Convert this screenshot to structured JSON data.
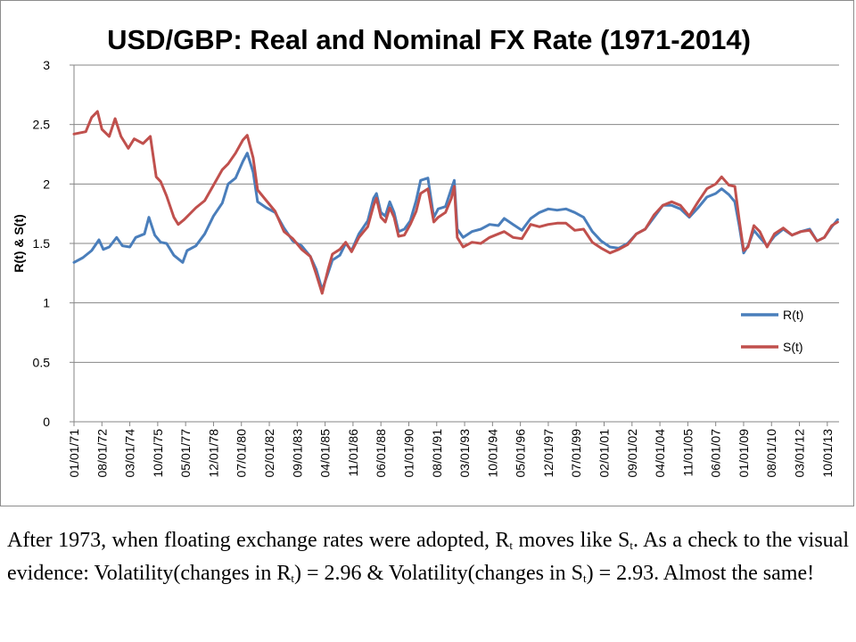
{
  "chart_data": {
    "type": "line",
    "title": "USD/GBP: Real and Nominal FX Rate (1971-2014)",
    "xlabel": "",
    "ylabel": "R(t) & S(t)",
    "ylim": [
      0,
      3
    ],
    "yticks": [
      "0",
      "0.5",
      "1",
      "1.5",
      "2",
      "2.5",
      "3"
    ],
    "x_start": "1971-01",
    "x_end": "2014-06",
    "xticks": [
      "01/01/71",
      "08/01/72",
      "03/01/74",
      "10/01/75",
      "05/01/77",
      "12/01/78",
      "07/01/80",
      "02/01/82",
      "09/01/83",
      "04/01/85",
      "11/01/86",
      "06/01/88",
      "01/01/90",
      "08/01/91",
      "03/01/93",
      "10/01/94",
      "05/01/96",
      "12/01/97",
      "07/01/99",
      "02/01/01",
      "09/01/02",
      "04/01/04",
      "11/01/05",
      "06/01/07",
      "01/01/09",
      "08/01/10",
      "03/01/12",
      "10/01/13"
    ],
    "grid": true,
    "legend_position": "right",
    "series": [
      {
        "name": "R(t)",
        "color": "#4a7ebb",
        "points": [
          [
            "1971-01",
            1.34
          ],
          [
            "1971-07",
            1.38
          ],
          [
            "1972-01",
            1.44
          ],
          [
            "1972-06",
            1.53
          ],
          [
            "1972-09",
            1.45
          ],
          [
            "1973-01",
            1.47
          ],
          [
            "1973-06",
            1.55
          ],
          [
            "1973-10",
            1.48
          ],
          [
            "1974-03",
            1.47
          ],
          [
            "1974-07",
            1.55
          ],
          [
            "1975-01",
            1.58
          ],
          [
            "1975-04",
            1.72
          ],
          [
            "1975-08",
            1.57
          ],
          [
            "1975-12",
            1.51
          ],
          [
            "1976-04",
            1.5
          ],
          [
            "1976-09",
            1.4
          ],
          [
            "1976-12",
            1.37
          ],
          [
            "1977-03",
            1.34
          ],
          [
            "1977-06",
            1.44
          ],
          [
            "1977-12",
            1.48
          ],
          [
            "1978-06",
            1.58
          ],
          [
            "1978-12",
            1.73
          ],
          [
            "1979-06",
            1.84
          ],
          [
            "1979-10",
            2.0
          ],
          [
            "1980-03",
            2.05
          ],
          [
            "1980-08",
            2.19
          ],
          [
            "1980-11",
            2.26
          ],
          [
            "1981-03",
            2.1
          ],
          [
            "1981-06",
            1.85
          ],
          [
            "1981-12",
            1.8
          ],
          [
            "1982-06",
            1.76
          ],
          [
            "1982-12",
            1.63
          ],
          [
            "1983-06",
            1.52
          ],
          [
            "1983-12",
            1.48
          ],
          [
            "1984-06",
            1.39
          ],
          [
            "1984-10",
            1.28
          ],
          [
            "1985-02",
            1.11
          ],
          [
            "1985-06",
            1.25
          ],
          [
            "1985-09",
            1.36
          ],
          [
            "1986-02",
            1.4
          ],
          [
            "1986-06",
            1.5
          ],
          [
            "1986-10",
            1.44
          ],
          [
            "1987-03",
            1.58
          ],
          [
            "1987-09",
            1.69
          ],
          [
            "1988-01",
            1.88
          ],
          [
            "1988-03",
            1.92
          ],
          [
            "1988-06",
            1.76
          ],
          [
            "1988-09",
            1.73
          ],
          [
            "1988-12",
            1.85
          ],
          [
            "1989-03",
            1.76
          ],
          [
            "1989-06",
            1.6
          ],
          [
            "1989-10",
            1.62
          ],
          [
            "1990-02",
            1.69
          ],
          [
            "1990-06",
            1.86
          ],
          [
            "1990-09",
            2.03
          ],
          [
            "1991-02",
            2.05
          ],
          [
            "1991-06",
            1.72
          ],
          [
            "1991-09",
            1.79
          ],
          [
            "1992-02",
            1.81
          ],
          [
            "1992-06",
            1.96
          ],
          [
            "1992-08",
            2.03
          ],
          [
            "1992-10",
            1.62
          ],
          [
            "1993-02",
            1.55
          ],
          [
            "1993-08",
            1.6
          ],
          [
            "1994-02",
            1.62
          ],
          [
            "1994-08",
            1.66
          ],
          [
            "1995-02",
            1.65
          ],
          [
            "1995-06",
            1.71
          ],
          [
            "1995-12",
            1.66
          ],
          [
            "1996-06",
            1.61
          ],
          [
            "1996-12",
            1.71
          ],
          [
            "1997-06",
            1.76
          ],
          [
            "1997-12",
            1.79
          ],
          [
            "1998-06",
            1.78
          ],
          [
            "1998-12",
            1.79
          ],
          [
            "1999-06",
            1.76
          ],
          [
            "1999-12",
            1.72
          ],
          [
            "2000-06",
            1.6
          ],
          [
            "2000-12",
            1.52
          ],
          [
            "2001-06",
            1.47
          ],
          [
            "2001-12",
            1.46
          ],
          [
            "2002-06",
            1.5
          ],
          [
            "2002-12",
            1.58
          ],
          [
            "2003-06",
            1.62
          ],
          [
            "2003-12",
            1.72
          ],
          [
            "2004-06",
            1.82
          ],
          [
            "2004-12",
            1.82
          ],
          [
            "2005-06",
            1.79
          ],
          [
            "2005-12",
            1.72
          ],
          [
            "2006-06",
            1.8
          ],
          [
            "2006-12",
            1.89
          ],
          [
            "2007-06",
            1.92
          ],
          [
            "2007-10",
            1.96
          ],
          [
            "2008-03",
            1.91
          ],
          [
            "2008-07",
            1.85
          ],
          [
            "2008-10",
            1.65
          ],
          [
            "2009-01",
            1.42
          ],
          [
            "2009-04",
            1.48
          ],
          [
            "2009-08",
            1.61
          ],
          [
            "2009-12",
            1.55
          ],
          [
            "2010-05",
            1.48
          ],
          [
            "2010-10",
            1.56
          ],
          [
            "2011-04",
            1.62
          ],
          [
            "2011-10",
            1.57
          ],
          [
            "2012-04",
            1.6
          ],
          [
            "2012-10",
            1.62
          ],
          [
            "2013-03",
            1.52
          ],
          [
            "2013-08",
            1.55
          ],
          [
            "2014-01",
            1.64
          ],
          [
            "2014-05",
            1.7
          ]
        ]
      },
      {
        "name": "S(t)",
        "color": "#c0504d",
        "points": [
          [
            "1971-01",
            2.42
          ],
          [
            "1971-09",
            2.44
          ],
          [
            "1972-01",
            2.56
          ],
          [
            "1972-05",
            2.61
          ],
          [
            "1972-08",
            2.46
          ],
          [
            "1973-01",
            2.4
          ],
          [
            "1973-05",
            2.55
          ],
          [
            "1973-09",
            2.4
          ],
          [
            "1974-02",
            2.3
          ],
          [
            "1974-06",
            2.38
          ],
          [
            "1974-12",
            2.34
          ],
          [
            "1975-05",
            2.4
          ],
          [
            "1975-09",
            2.06
          ],
          [
            "1975-12",
            2.02
          ],
          [
            "1976-04",
            1.9
          ],
          [
            "1976-09",
            1.72
          ],
          [
            "1976-12",
            1.66
          ],
          [
            "1977-04",
            1.7
          ],
          [
            "1977-12",
            1.8
          ],
          [
            "1978-06",
            1.86
          ],
          [
            "1978-12",
            1.99
          ],
          [
            "1979-06",
            2.12
          ],
          [
            "1979-10",
            2.17
          ],
          [
            "1980-03",
            2.26
          ],
          [
            "1980-08",
            2.37
          ],
          [
            "1980-11",
            2.41
          ],
          [
            "1981-03",
            2.22
          ],
          [
            "1981-06",
            1.95
          ],
          [
            "1981-12",
            1.86
          ],
          [
            "1982-06",
            1.77
          ],
          [
            "1982-12",
            1.6
          ],
          [
            "1983-06",
            1.54
          ],
          [
            "1983-12",
            1.45
          ],
          [
            "1984-06",
            1.39
          ],
          [
            "1984-10",
            1.24
          ],
          [
            "1985-02",
            1.08
          ],
          [
            "1985-06",
            1.28
          ],
          [
            "1985-09",
            1.41
          ],
          [
            "1986-02",
            1.45
          ],
          [
            "1986-06",
            1.51
          ],
          [
            "1986-10",
            1.43
          ],
          [
            "1987-03",
            1.55
          ],
          [
            "1987-09",
            1.64
          ],
          [
            "1988-01",
            1.82
          ],
          [
            "1988-03",
            1.88
          ],
          [
            "1988-06",
            1.72
          ],
          [
            "1988-09",
            1.68
          ],
          [
            "1988-12",
            1.8
          ],
          [
            "1989-03",
            1.72
          ],
          [
            "1989-06",
            1.56
          ],
          [
            "1989-10",
            1.57
          ],
          [
            "1990-02",
            1.66
          ],
          [
            "1990-06",
            1.77
          ],
          [
            "1990-09",
            1.92
          ],
          [
            "1991-02",
            1.96
          ],
          [
            "1991-06",
            1.68
          ],
          [
            "1991-09",
            1.72
          ],
          [
            "1992-02",
            1.76
          ],
          [
            "1992-06",
            1.88
          ],
          [
            "1992-08",
            1.98
          ],
          [
            "1992-10",
            1.55
          ],
          [
            "1993-02",
            1.47
          ],
          [
            "1993-08",
            1.51
          ],
          [
            "1994-02",
            1.5
          ],
          [
            "1994-08",
            1.55
          ],
          [
            "1995-02",
            1.58
          ],
          [
            "1995-06",
            1.6
          ],
          [
            "1995-12",
            1.55
          ],
          [
            "1996-06",
            1.54
          ],
          [
            "1996-12",
            1.66
          ],
          [
            "1997-06",
            1.64
          ],
          [
            "1997-12",
            1.66
          ],
          [
            "1998-06",
            1.67
          ],
          [
            "1998-12",
            1.67
          ],
          [
            "1999-06",
            1.61
          ],
          [
            "1999-12",
            1.62
          ],
          [
            "2000-06",
            1.51
          ],
          [
            "2000-12",
            1.46
          ],
          [
            "2001-06",
            1.42
          ],
          [
            "2001-12",
            1.45
          ],
          [
            "2002-06",
            1.49
          ],
          [
            "2002-12",
            1.58
          ],
          [
            "2003-06",
            1.62
          ],
          [
            "2003-12",
            1.74
          ],
          [
            "2004-06",
            1.82
          ],
          [
            "2004-12",
            1.85
          ],
          [
            "2005-06",
            1.82
          ],
          [
            "2005-12",
            1.73
          ],
          [
            "2006-06",
            1.85
          ],
          [
            "2006-12",
            1.96
          ],
          [
            "2007-06",
            2.0
          ],
          [
            "2007-10",
            2.06
          ],
          [
            "2008-03",
            1.99
          ],
          [
            "2008-07",
            1.98
          ],
          [
            "2008-10",
            1.7
          ],
          [
            "2009-01",
            1.44
          ],
          [
            "2009-04",
            1.47
          ],
          [
            "2009-08",
            1.65
          ],
          [
            "2009-12",
            1.6
          ],
          [
            "2010-05",
            1.47
          ],
          [
            "2010-10",
            1.58
          ],
          [
            "2011-04",
            1.63
          ],
          [
            "2011-10",
            1.57
          ],
          [
            "2012-04",
            1.6
          ],
          [
            "2012-10",
            1.61
          ],
          [
            "2013-03",
            1.52
          ],
          [
            "2013-08",
            1.55
          ],
          [
            "2014-01",
            1.65
          ],
          [
            "2014-05",
            1.68
          ]
        ]
      }
    ]
  },
  "caption": {
    "line1": "After 1973, when floating exchange rates were adopted, R",
    "r_sub": "t",
    "mid1": " moves like S",
    "s_sub": "t",
    "line2": ". As a check to the visual evidence: Volatility(changes in R",
    "r_sub2": "t",
    "line3": ") = 2.96 & Volatility(changes in S",
    "s_sub2": "t",
    "line4": ") = 2.93. Almost the same!"
  }
}
